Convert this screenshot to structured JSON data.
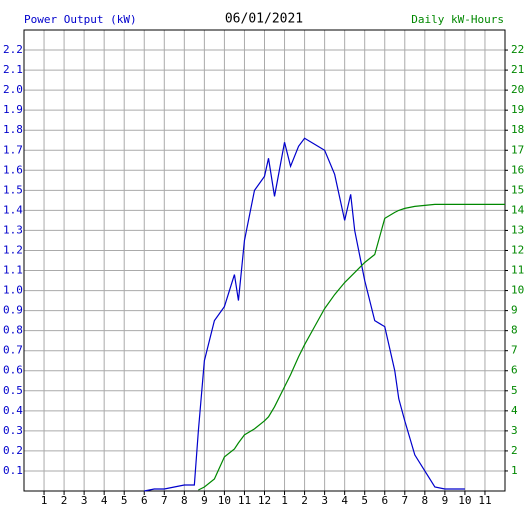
{
  "chart_data": {
    "type": "line",
    "title": "06/01/2021",
    "ylabel": "Power Output (kW)",
    "y2label": "Daily kW-Hours",
    "x": [
      6,
      6.5,
      7,
      7.5,
      8,
      8.5,
      8.7,
      9,
      9.5,
      10,
      10.5,
      10.7,
      11,
      11.5,
      12,
      12.2,
      12.5,
      13,
      13.3,
      13.7,
      14,
      14.5,
      15,
      15.5,
      16,
      16.3,
      16.5,
      17,
      17.5,
      18,
      18.5,
      18.7,
      19,
      19.5,
      20,
      20.5,
      21,
      22,
      23,
      24
    ],
    "series": [
      {
        "color": "#0000cc",
        "values": [
          0,
          0.01,
          0.01,
          0.02,
          0.03,
          0.03,
          0.3,
          0.65,
          0.85,
          0.92,
          1.08,
          0.95,
          1.25,
          1.5,
          1.57,
          1.66,
          1.47,
          1.74,
          1.62,
          1.72,
          1.76,
          1.73,
          1.7,
          1.58,
          1.35,
          1.48,
          1.3,
          1.05,
          0.85,
          0.82,
          0.6,
          0.46,
          0.35,
          0.18,
          0.1,
          0.02,
          0.01,
          0.01,
          null,
          null
        ]
      },
      {
        "color": "#008800",
        "axis": "y2",
        "values": [
          null,
          null,
          null,
          null,
          null,
          null,
          0.05,
          0.2,
          0.6,
          1.7,
          2.1,
          2.4,
          2.8,
          3.1,
          3.5,
          3.7,
          4.2,
          5.2,
          5.8,
          6.7,
          7.3,
          8.2,
          9.1,
          9.8,
          10.4,
          10.7,
          10.9,
          11.4,
          11.8,
          13.6,
          13.9,
          14.0,
          14.1,
          14.2,
          14.25,
          14.3,
          14.3,
          14.3,
          14.3,
          14.3
        ]
      }
    ],
    "xlim": [
      0,
      24
    ],
    "xticks": [
      1,
      2,
      3,
      4,
      5,
      6,
      7,
      8,
      9,
      10,
      11,
      12,
      {
        "value": 13,
        "label": "1"
      },
      {
        "value": 14,
        "label": "2"
      },
      {
        "value": 15,
        "label": "3"
      },
      {
        "value": 16,
        "label": "4"
      },
      {
        "value": 17,
        "label": "5"
      },
      {
        "value": 18,
        "label": "6"
      },
      {
        "value": 19,
        "label": "7"
      },
      {
        "value": 20,
        "label": "8"
      },
      {
        "value": 21,
        "label": "9"
      },
      {
        "value": 22,
        "label": "10"
      },
      {
        "value": 23,
        "label": "11"
      }
    ],
    "ylim": [
      0,
      2.3
    ],
    "yticks": [
      0.1,
      0.2,
      0.3,
      0.4,
      0.5,
      0.6,
      0.7,
      0.8,
      0.9,
      {
        "value": 1,
        "label": "1.0"
      },
      1.1,
      1.2,
      1.3,
      1.4,
      1.5,
      1.6,
      1.7,
      1.8,
      1.9,
      {
        "value": 2,
        "label": "2.0"
      },
      2.1,
      2.2
    ],
    "y2lim": [
      0,
      23
    ],
    "y2ticks": [
      1,
      2,
      3,
      4,
      5,
      6,
      7,
      8,
      9,
      10,
      11,
      12,
      13,
      14,
      15,
      16,
      17,
      18,
      19,
      20,
      21,
      22
    ],
    "grid": true
  }
}
